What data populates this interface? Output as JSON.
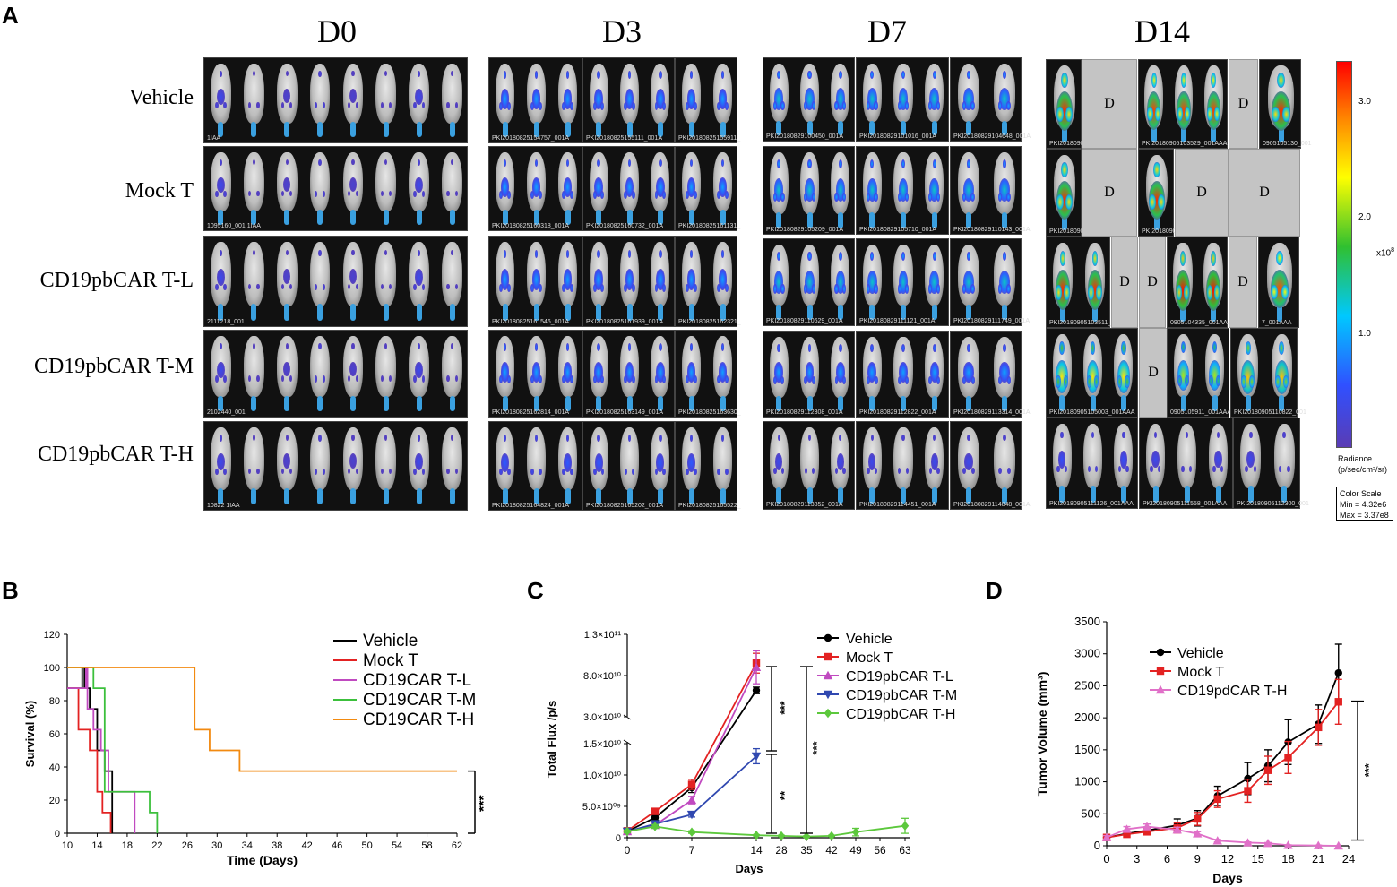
{
  "panel_a": {
    "letter": "A",
    "days": [
      "D0",
      "D3",
      "D7",
      "D14"
    ],
    "rows": [
      "Vehicle",
      "Mock T",
      "CD19pbCAR T-L",
      "CD19pbCAR T-M",
      "CD19pbCAR T-H"
    ],
    "dead_marker": "D",
    "image_ids": {
      "d0": [
        "1IAA",
        "1095160_001 1IAA",
        "2111218_001",
        "2102440_001",
        "10822 1IAA",
        "1IAA"
      ],
      "d3": [
        "PKI20180825154757_001A",
        "PKI20180825155111_001A",
        "PKI20180825155911_",
        "PKI20180825160318_001A",
        "PKI20180825160732_001A",
        "PKI20180825161131_",
        "PKI20180825161546_001A",
        "PKI20180825161939_001A",
        "PKI20180825162321_",
        "PKI20180825162814_001A",
        "PKI20180825163149_001A",
        "PKI20180825163630_",
        "PKI20180825164824_001A",
        "PKI20180825165202_001A",
        "PKI20180825165522_"
      ],
      "d7": [
        "PKI20180829100450_001A",
        "PKI20180829101016_001A",
        "PKI20180829104648_001A",
        "PKI20180829105209_001A",
        "PKI20180829105710_001A",
        "PKI20180829110143_001A",
        "PKI20180829110629_001A",
        "PKI20180829111121_001A",
        "PKI20180829111749_001A",
        "PKI20180829112308_001A",
        "PKI20180829112822_001A",
        "PKI20180829113314_001A",
        "PKI20180829113852_001A",
        "PKI20180829114451_001A",
        "PKI20180829114848_001A"
      ],
      "d14": [
        "PKI20180905",
        "PKI20180905103529_001AAA",
        "0905105130_001",
        "PKI20180905",
        "PKI20180905",
        "PKI20180905103511_001",
        "0905104335_001AAA",
        "7_001AAA",
        "PKI20180905105003_001AAA",
        "0905105911_001AAA",
        "PKI20180905110822_001",
        "PKI20180905111126_001AAA",
        "PKI20180905111558_001AAA",
        "PKI20180905112300_001"
      ]
    },
    "colorbar": {
      "ticks": [
        "3.0",
        "2.0",
        "1.0"
      ],
      "exponent": "x10",
      "exponent_power": "8",
      "label_line1": "Radiance",
      "label_line2": "(p/sec/cm²/sr)",
      "scale_title": "Color Scale",
      "scale_min": "Min = 4.32e6",
      "scale_max": "Max = 3.37e8"
    }
  },
  "panel_b": {
    "letter": "B",
    "chart_data": {
      "type": "line",
      "subtype": "kaplan-meier",
      "xlabel": "Time (Days)",
      "ylabel": "Survival (%)",
      "xlim": [
        10,
        62
      ],
      "ylim": [
        0,
        120
      ],
      "xticks": [
        10,
        14,
        18,
        22,
        26,
        30,
        34,
        38,
        42,
        46,
        50,
        54,
        58,
        62
      ],
      "yticks": [
        0,
        20,
        40,
        60,
        80,
        100,
        120
      ],
      "significance": "***",
      "series": [
        {
          "name": "Vehicle",
          "color": "#000000",
          "steps": [
            [
              10,
              87.5
            ],
            [
              12,
              87.5
            ],
            [
              12,
              100
            ],
            [
              12.3,
              100
            ],
            [
              12.3,
              87.5
            ],
            [
              13,
              87.5
            ],
            [
              13,
              75
            ],
            [
              14,
              75
            ],
            [
              14,
              50
            ],
            [
              15,
              50
            ],
            [
              15,
              37.5
            ],
            [
              16,
              37.5
            ],
            [
              16,
              0
            ]
          ]
        },
        {
          "name": "Mock T",
          "color": "#e32222",
          "steps": [
            [
              10,
              87.5
            ],
            [
              11.5,
              87.5
            ],
            [
              11.5,
              62.5
            ],
            [
              13,
              62.5
            ],
            [
              13,
              50
            ],
            [
              14,
              50
            ],
            [
              14,
              25
            ],
            [
              14.7,
              25
            ],
            [
              14.7,
              12.5
            ],
            [
              15.8,
              12.5
            ],
            [
              15.8,
              0
            ]
          ]
        },
        {
          "name": "CD19CAR T-L",
          "color": "#c04ac0",
          "steps": [
            [
              10,
              87.5
            ],
            [
              12.5,
              87.5
            ],
            [
              12.5,
              100
            ],
            [
              12.7,
              100
            ],
            [
              12.7,
              75
            ],
            [
              13.5,
              75
            ],
            [
              13.5,
              62.5
            ],
            [
              14.5,
              62.5
            ],
            [
              14.5,
              50
            ],
            [
              15.5,
              50
            ],
            [
              15.5,
              25
            ],
            [
              19,
              25
            ],
            [
              19,
              0
            ]
          ]
        },
        {
          "name": "CD19CAR T-M",
          "color": "#3cc03c",
          "steps": [
            [
              10,
              100
            ],
            [
              13.5,
              100
            ],
            [
              13.5,
              87.5
            ],
            [
              15,
              87.5
            ],
            [
              15,
              25
            ],
            [
              21,
              25
            ],
            [
              21,
              12.5
            ],
            [
              22,
              12.5
            ],
            [
              22,
              0
            ]
          ]
        },
        {
          "name": "CD19CAR T-H",
          "color": "#f28a10",
          "steps": [
            [
              10,
              100
            ],
            [
              27,
              100
            ],
            [
              27,
              62.5
            ],
            [
              29,
              62.5
            ],
            [
              29,
              50
            ],
            [
              33,
              50
            ],
            [
              33,
              37.5
            ],
            [
              62,
              37.5
            ]
          ]
        }
      ]
    }
  },
  "panel_c": {
    "letter": "C",
    "chart_data": {
      "type": "line",
      "subtype": "broken-axis",
      "xlabel": "Days",
      "ylabel": "Total Flux /p/s",
      "xticks": [
        0,
        7,
        14,
        28,
        35,
        42,
        49,
        56,
        63
      ],
      "yticks_upper": [
        "3.0×10¹⁰",
        "8.0×10¹⁰",
        "1.3×10¹¹"
      ],
      "yticks_lower": [
        "0",
        "5.0×10⁰⁹",
        "1.0×10¹⁰",
        "1.5×10¹⁰"
      ],
      "significance": [
        "***",
        "**",
        "***"
      ],
      "series": [
        {
          "name": "Vehicle",
          "color": "#000000",
          "marker": "circle",
          "x": [
            0,
            3,
            7,
            14
          ],
          "y": [
            1000000000.0,
            3200000000.0,
            8000000000.0,
            62000000000.0
          ],
          "err": [
            200000000.0,
            400000000.0,
            800000000.0,
            4000000000.0
          ]
        },
        {
          "name": "Mock T",
          "color": "#e32222",
          "marker": "square",
          "x": [
            0,
            3,
            7,
            14
          ],
          "y": [
            1100000000.0,
            4200000000.0,
            8500000000.0,
            95000000000.0
          ],
          "err": [
            200000000.0,
            400000000.0,
            800000000.0,
            12000000000.0
          ]
        },
        {
          "name": "CD19pbCAR T-L",
          "color": "#c04ac0",
          "marker": "triangle-up",
          "x": [
            0,
            3,
            7,
            14
          ],
          "y": [
            1000000000.0,
            2000000000.0,
            6000000000.0,
            90000000000.0
          ],
          "err": [
            200000000.0,
            300000000.0,
            600000000.0,
            20000000000.0
          ]
        },
        {
          "name": "CD19pbCAR T-M",
          "color": "#3048b0",
          "marker": "triangle-down",
          "x": [
            0,
            3,
            7,
            14
          ],
          "y": [
            1000000000.0,
            2200000000.0,
            3700000000.0,
            13000000000.0
          ],
          "err": [
            200000000.0,
            300000000.0,
            400000000.0,
            1200000000.0
          ]
        },
        {
          "name": "CD19pbCAR T-H",
          "color": "#5cc83c",
          "marker": "diamond",
          "x": [
            0,
            3,
            7,
            14,
            28,
            35,
            42,
            49,
            63
          ],
          "y": [
            1000000000.0,
            1800000000.0,
            900000000.0,
            400000000.0,
            300000000.0,
            200000000.0,
            300000000.0,
            900000000.0,
            1900000000.0
          ],
          "err": [
            200000000.0,
            300000000.0,
            200000000.0,
            100000000.0,
            100000000.0,
            100000000.0,
            100000000.0,
            600000000.0,
            1200000000.0
          ]
        }
      ]
    }
  },
  "panel_d": {
    "letter": "D",
    "chart_data": {
      "type": "line",
      "xlabel": "Days",
      "ylabel": "Tumor Volume (mm³)",
      "xlim": [
        0,
        24
      ],
      "ylim": [
        0,
        3500
      ],
      "xticks": [
        0,
        3,
        6,
        9,
        12,
        15,
        18,
        21,
        24
      ],
      "yticks": [
        0,
        500,
        1000,
        1500,
        2000,
        2500,
        3000,
        3500
      ],
      "significance": "***",
      "series": [
        {
          "name": "Vehicle",
          "color": "#000000",
          "marker": "circle",
          "x": [
            0,
            2,
            4,
            7,
            9,
            11,
            14,
            16,
            18,
            21,
            23
          ],
          "y": [
            130,
            190,
            240,
            320,
            430,
            780,
            1050,
            1250,
            1620,
            1900,
            2700
          ],
          "err": [
            30,
            40,
            50,
            100,
            120,
            150,
            250,
            250,
            350,
            300,
            450
          ]
        },
        {
          "name": "Mock T",
          "color": "#e32222",
          "marker": "square",
          "x": [
            0,
            2,
            4,
            7,
            9,
            11,
            14,
            16,
            18,
            21,
            23
          ],
          "y": [
            130,
            180,
            220,
            280,
            420,
            730,
            860,
            1180,
            1380,
            1850,
            2250
          ],
          "err": [
            30,
            40,
            50,
            80,
            100,
            130,
            180,
            220,
            250,
            280,
            350
          ]
        },
        {
          "name": "CD19pdCAR T-H",
          "color": "#e070c8",
          "marker": "triangle-up",
          "x": [
            0,
            2,
            4,
            7,
            9,
            11,
            14,
            16,
            18,
            21,
            23
          ],
          "y": [
            130,
            260,
            300,
            250,
            190,
            80,
            50,
            40,
            10,
            5,
            0
          ],
          "err": [
            30,
            40,
            40,
            40,
            30,
            20,
            10,
            10,
            5,
            5,
            0
          ]
        }
      ]
    }
  }
}
